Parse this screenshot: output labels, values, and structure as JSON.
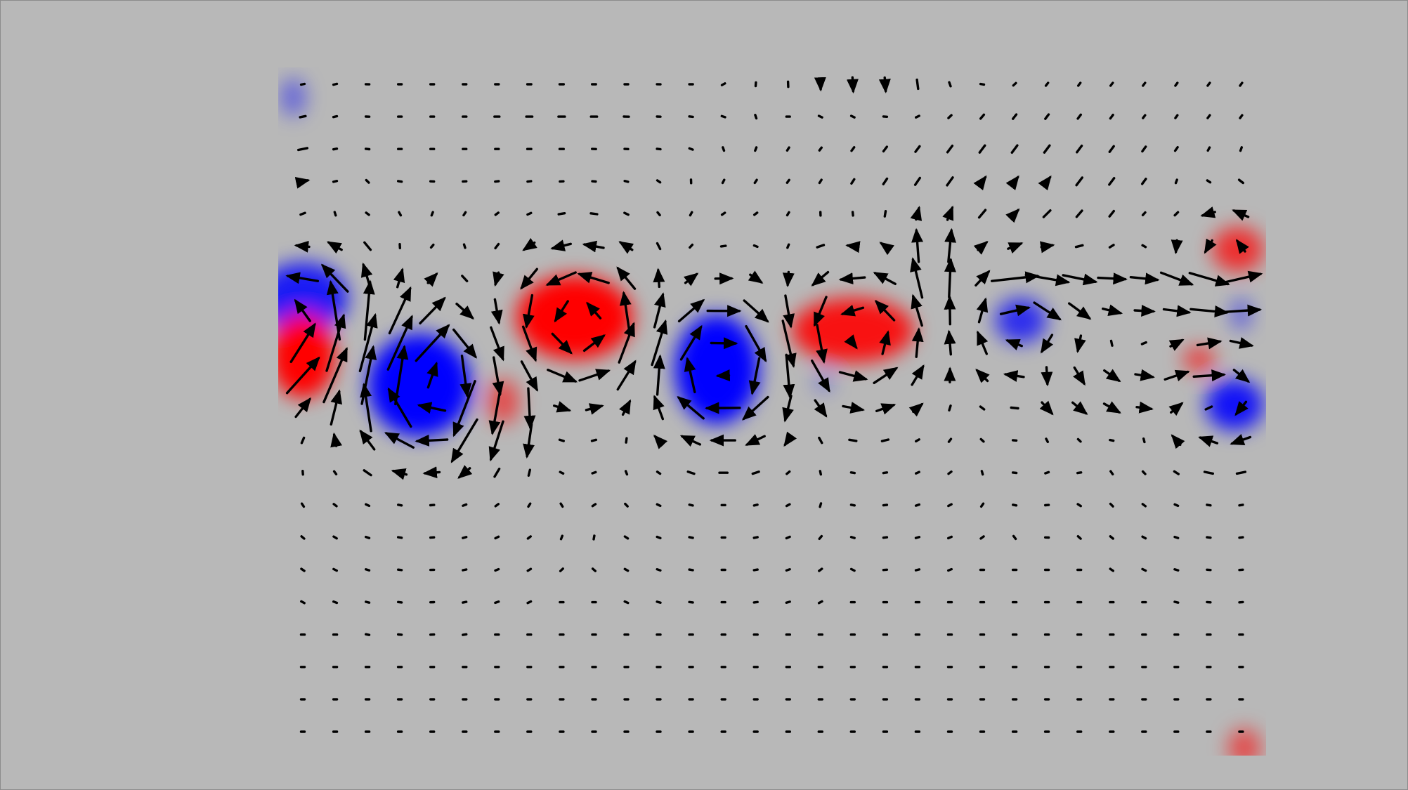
{
  "figure": {
    "background": "#b8b8b8",
    "border": "#8c8c8c"
  },
  "chart_data": {
    "type": "quiver",
    "title": "",
    "xlabel": "",
    "ylabel": "",
    "grid": false,
    "legend": "none",
    "cols": 30,
    "rows": 21,
    "xlim": [
      0,
      29
    ],
    "ylim": [
      0,
      20
    ],
    "arrow_color": "#000000",
    "positive_color": "#ff0000",
    "negative_color": "#0000ff",
    "vorticity_blobs": [
      {
        "sign": -1,
        "x": 0.0,
        "y": 13.4,
        "rx": 1.4,
        "ry": 1.1,
        "strength": 0.85
      },
      {
        "sign": 1,
        "x": 0.0,
        "y": 11.6,
        "rx": 1.0,
        "ry": 1.3,
        "strength": 1.0
      },
      {
        "sign": -1,
        "x": 3.6,
        "y": 10.7,
        "rx": 1.6,
        "ry": 1.6,
        "strength": 1.0
      },
      {
        "sign": 1,
        "x": 6.2,
        "y": 10.2,
        "rx": 0.5,
        "ry": 0.7,
        "strength": 0.6
      },
      {
        "sign": 1,
        "x": 8.4,
        "y": 12.8,
        "rx": 1.8,
        "ry": 1.3,
        "strength": 1.0
      },
      {
        "sign": -1,
        "x": 12.8,
        "y": 11.2,
        "rx": 1.3,
        "ry": 1.7,
        "strength": 1.0
      },
      {
        "sign": 1,
        "x": 17.0,
        "y": 12.4,
        "rx": 1.9,
        "ry": 1.0,
        "strength": 0.9
      },
      {
        "sign": -1,
        "x": 22.2,
        "y": 12.7,
        "rx": 0.8,
        "ry": 0.7,
        "strength": 0.75
      },
      {
        "sign": 1,
        "x": 28.9,
        "y": 14.9,
        "rx": 0.8,
        "ry": 0.7,
        "strength": 0.75
      },
      {
        "sign": 1,
        "x": 27.7,
        "y": 11.5,
        "rx": 0.5,
        "ry": 0.4,
        "strength": 0.65
      },
      {
        "sign": -1,
        "x": 28.8,
        "y": 10.1,
        "rx": 0.9,
        "ry": 0.8,
        "strength": 0.9
      },
      {
        "sign": -1,
        "x": 29.0,
        "y": 12.9,
        "rx": 0.3,
        "ry": 0.5,
        "strength": 0.5
      },
      {
        "sign": -1,
        "x": 16.1,
        "y": 10.8,
        "rx": 0.3,
        "ry": 0.3,
        "strength": 0.35
      },
      {
        "sign": -1,
        "x": -0.3,
        "y": 19.6,
        "rx": 0.4,
        "ry": 0.6,
        "strength": 0.45
      },
      {
        "sign": 1,
        "x": 29.1,
        "y": -0.5,
        "rx": 0.5,
        "ry": 0.6,
        "strength": 0.6
      }
    ],
    "vortices": [
      {
        "x": 0.2,
        "y": 12.6,
        "gamma": 2.6,
        "r": 1.3
      },
      {
        "x": 3.7,
        "y": 10.8,
        "gamma": -2.6,
        "r": 1.4
      },
      {
        "x": 8.6,
        "y": 12.6,
        "gamma": 2.4,
        "r": 1.4
      },
      {
        "x": 13.0,
        "y": 11.3,
        "gamma": -2.6,
        "r": 1.4
      },
      {
        "x": 17.2,
        "y": 12.2,
        "gamma": 2.1,
        "r": 1.4
      },
      {
        "x": 22.2,
        "y": 12.6,
        "gamma": -1.6,
        "r": 1.2
      },
      {
        "x": 28.5,
        "y": 10.4,
        "gamma": -1.6,
        "r": 1.2
      },
      {
        "x": 28.6,
        "y": 14.6,
        "gamma": 1.4,
        "r": 1.1
      }
    ],
    "jets": [
      {
        "x0": -0.5,
        "x1": 4.5,
        "y": 11.8,
        "dx": 0.0,
        "dy": 2.0,
        "wy": 2.5
      },
      {
        "x0": 4.5,
        "x1": 7.0,
        "y": 9.5,
        "dx": -0.3,
        "dy": -1.6,
        "wy": 1.5
      },
      {
        "x0": 18.5,
        "x1": 20.5,
        "y": 14.5,
        "dx": 0.0,
        "dy": 1.4,
        "wy": 1.6
      },
      {
        "x0": 21.5,
        "x1": 29.5,
        "y": 13.6,
        "dx": 1.6,
        "dy": 0.0,
        "wy": 1.0
      },
      {
        "x0": 22.5,
        "x1": 28.5,
        "y": 10.5,
        "dx": 1.0,
        "dy": -0.6,
        "wy": 1.3
      }
    ],
    "background_flow": [
      {
        "x": 17.5,
        "y": 20.3,
        "dx": 0.0,
        "dy": -0.8,
        "wx": 2.5,
        "wy": 1.0
      },
      {
        "x": 0.0,
        "y": 17.0,
        "dx": 0.5,
        "dy": 0.1,
        "wx": 1.0,
        "wy": 2.5
      },
      {
        "x": 8.0,
        "y": 19.0,
        "dx": -0.3,
        "dy": 0.0,
        "wx": 4.0,
        "wy": 1.5
      },
      {
        "x": 22.0,
        "y": 17.0,
        "dx": 0.3,
        "dy": 0.4,
        "wx": 6.0,
        "wy": 2.5
      }
    ]
  }
}
